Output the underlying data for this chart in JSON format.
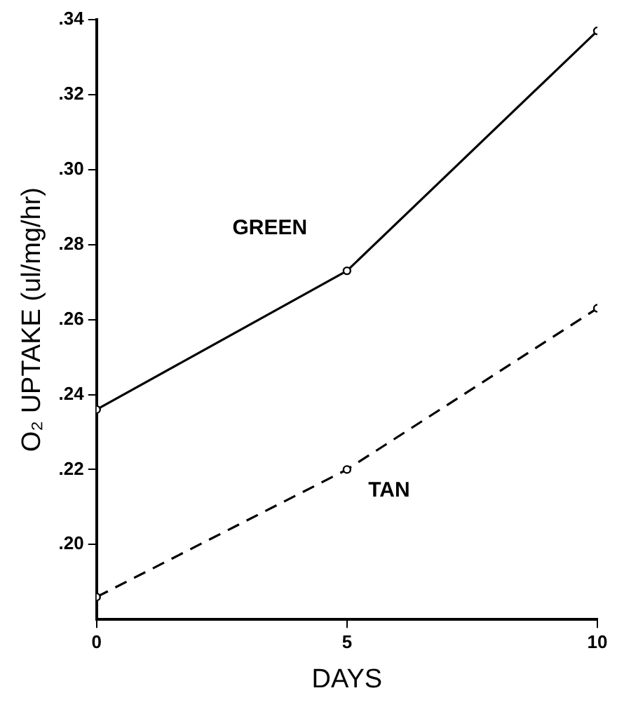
{
  "chart_data": {
    "type": "line",
    "xlabel": "DAYS",
    "ylabel": "O₂ UPTAKE (ul/mg/hr)",
    "x": [
      0,
      5,
      10
    ],
    "series": [
      {
        "name": "GREEN",
        "color": "#000000",
        "values": [
          0.236,
          0.273,
          0.337
        ],
        "line_style": "solid"
      },
      {
        "name": "TAN",
        "color": "#000000",
        "values": [
          0.186,
          0.22,
          0.263
        ],
        "line_style": "dashed"
      }
    ],
    "xlim": [
      0,
      10
    ],
    "xticks": [
      0,
      5,
      10
    ],
    "ylim": [
      0.18,
      0.34
    ],
    "yticks": [
      {
        "value": 0.2,
        "label": ".20"
      },
      {
        "value": 0.22,
        "label": ".22"
      },
      {
        "value": 0.24,
        "label": ".24"
      },
      {
        "value": 0.26,
        "label": ".26"
      },
      {
        "value": 0.28,
        "label": ".28"
      },
      {
        "value": 0.3,
        "label": ".30"
      },
      {
        "value": 0.32,
        "label": ".32"
      },
      {
        "value": 0.34,
        "label": ".34"
      }
    ],
    "grid": false,
    "legend": false,
    "marker": "circle"
  }
}
